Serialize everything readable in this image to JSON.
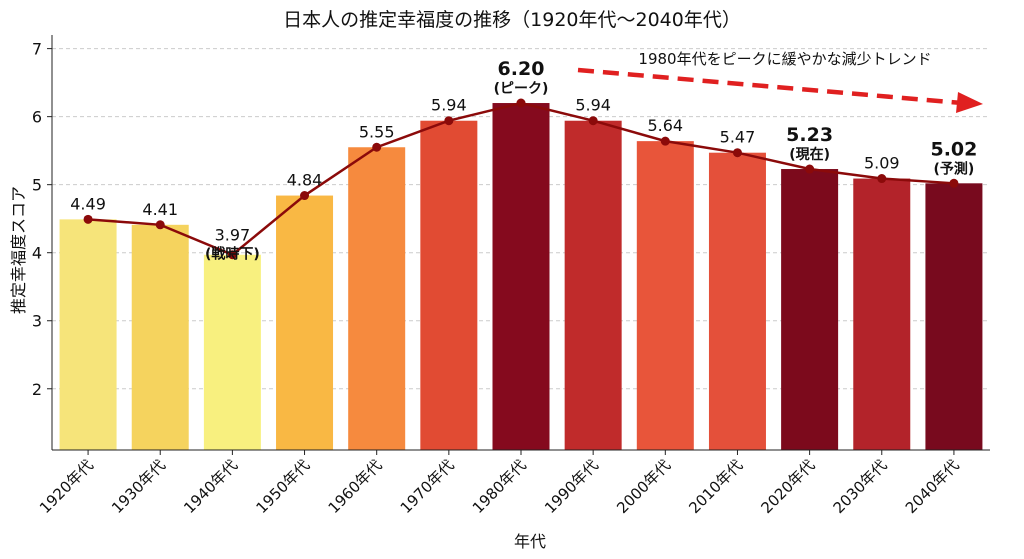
{
  "chart_data": {
    "type": "bar",
    "title": "日本人の推定幸福度の推移（1920年代〜2040年代）",
    "xlabel": "年代",
    "ylabel": "推定幸福度スコア",
    "ylim": [
      1.1,
      7.2
    ],
    "yticks": [
      2,
      3,
      4,
      5,
      6,
      7
    ],
    "grid": "horizontal dashed",
    "categories": [
      "1920年代",
      "1930年代",
      "1940年代",
      "1950年代",
      "1960年代",
      "1970年代",
      "1980年代",
      "1990年代",
      "2000年代",
      "2010年代",
      "2020年代",
      "2030年代",
      "2040年代"
    ],
    "values": [
      4.49,
      4.41,
      3.97,
      4.84,
      5.55,
      5.94,
      6.2,
      5.94,
      5.64,
      5.47,
      5.23,
      5.09,
      5.02
    ],
    "value_labels": [
      "4.49",
      "4.41",
      "3.97",
      "4.84",
      "5.55",
      "5.94",
      "6.20",
      "5.94",
      "5.64",
      "5.47",
      "5.23",
      "5.09",
      "5.02"
    ],
    "notes": [
      "",
      "",
      "(戦時下)",
      "",
      "",
      "",
      "(ピーク)",
      "",
      "",
      "",
      "(現在)",
      "",
      "(予測)"
    ],
    "bold": [
      false,
      false,
      false,
      false,
      false,
      false,
      true,
      false,
      false,
      false,
      true,
      false,
      true
    ],
    "bar_colors": [
      "#f6e47a",
      "#f5d35e",
      "#f8f07f",
      "#f9b844",
      "#f68a3e",
      "#e14b33",
      "#850a1e",
      "#c02b2b",
      "#e8553a",
      "#e4503a",
      "#7c0a1c",
      "#b3232a",
      "#780a1e"
    ],
    "line_color": "#8b0a0a",
    "trend_annotation": "1980年代をピークに緩やかな減少トレンド",
    "trend_arrow_color": "#e02020"
  }
}
